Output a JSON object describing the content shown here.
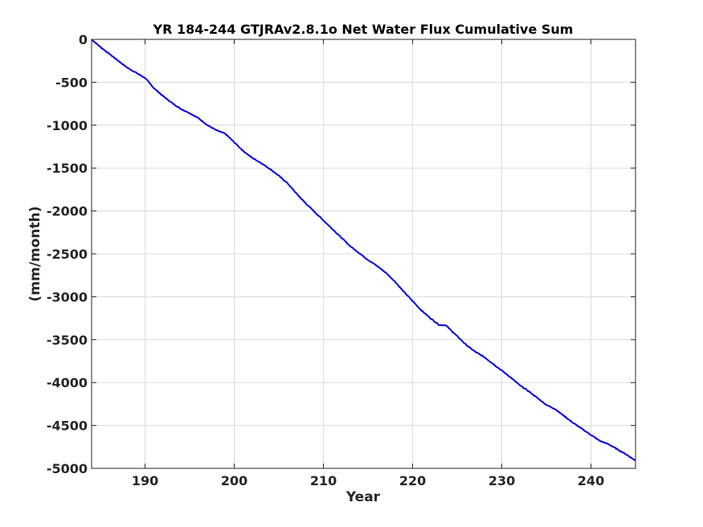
{
  "chart_data": {
    "type": "line",
    "title": "YR 184-244 GTJRAv2.8.1o Net Water Flux Cumulative Sum",
    "xlabel": "Year",
    "ylabel": "(mm/month)",
    "xlim": [
      184,
      245
    ],
    "ylim": [
      -5000,
      0
    ],
    "xticks": [
      190,
      200,
      210,
      220,
      230,
      240
    ],
    "yticks": [
      0,
      -500,
      -1000,
      -1500,
      -2000,
      -2500,
      -3000,
      -3500,
      -4000,
      -4500,
      -5000
    ],
    "grid": true,
    "series": [
      {
        "color": "#0000dd",
        "x": [
          184.0,
          185.0,
          186.0,
          187.0,
          188.0,
          189.0,
          190.0,
          191.0,
          192.0,
          193.0,
          194.0,
          195.0,
          196.0,
          197.0,
          198.0,
          199.0,
          200.0,
          201.0,
          202.0,
          203.0,
          204.0,
          205.0,
          206.0,
          207.0,
          208.0,
          209.0,
          210.0,
          211.0,
          212.0,
          213.0,
          214.0,
          215.0,
          216.0,
          217.0,
          218.0,
          219.0,
          220.0,
          221.0,
          222.0,
          223.0,
          223.7,
          224.0,
          225.0,
          226.0,
          227.0,
          228.0,
          229.0,
          230.0,
          231.0,
          232.0,
          233.0,
          234.0,
          235.0,
          236.0,
          237.0,
          238.0,
          239.0,
          240.0,
          241.0,
          242.0,
          243.0,
          244.0,
          245.0
        ],
        "y": [
          0,
          -90,
          -170,
          -250,
          -330,
          -390,
          -450,
          -570,
          -660,
          -740,
          -810,
          -860,
          -920,
          -1000,
          -1060,
          -1100,
          -1200,
          -1300,
          -1380,
          -1440,
          -1510,
          -1590,
          -1680,
          -1800,
          -1910,
          -2010,
          -2110,
          -2210,
          -2310,
          -2410,
          -2490,
          -2570,
          -2640,
          -2720,
          -2820,
          -2940,
          -3050,
          -3160,
          -3250,
          -3330,
          -3330,
          -3360,
          -3460,
          -3560,
          -3640,
          -3700,
          -3780,
          -3860,
          -3940,
          -4030,
          -4100,
          -4180,
          -4260,
          -4310,
          -4390,
          -4470,
          -4540,
          -4610,
          -4680,
          -4720,
          -4780,
          -4840,
          -4910
        ]
      }
    ]
  }
}
